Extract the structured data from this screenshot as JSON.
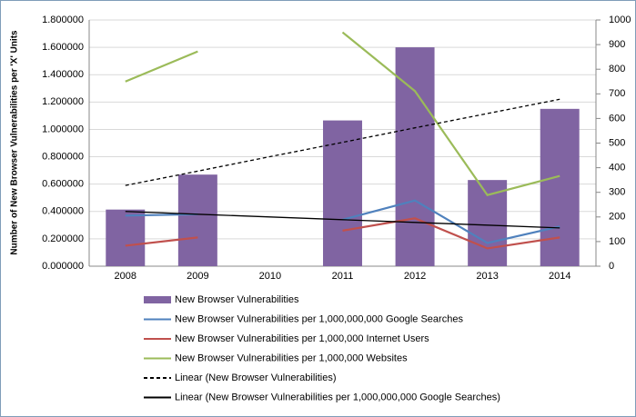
{
  "chart_data": {
    "type": "bar",
    "y_axis_label": "Number of New Browser Vulnerabilities per 'X' Units",
    "categories": [
      "2008",
      "2009",
      "2010",
      "2011",
      "2012",
      "2013",
      "2014"
    ],
    "ylim": [
      0,
      1.8
    ],
    "yticks": [
      {
        "value": 0,
        "label": "0.000000"
      },
      {
        "value": 0.2,
        "label": "0.200000"
      },
      {
        "value": 0.4,
        "label": "0.400000"
      },
      {
        "value": 0.6,
        "label": "0.600000"
      },
      {
        "value": 0.8,
        "label": "0.800000"
      },
      {
        "value": 1.0,
        "label": "1.000000"
      },
      {
        "value": 1.2,
        "label": "1.200000"
      },
      {
        "value": 1.4,
        "label": "1.400000"
      },
      {
        "value": 1.6,
        "label": "1.600000"
      },
      {
        "value": 1.8,
        "label": "1.800000"
      }
    ],
    "y2lim": [
      0,
      1000
    ],
    "y2ticks": [
      0,
      100,
      200,
      300,
      400,
      500,
      600,
      700,
      800,
      900,
      1000
    ],
    "grid": true,
    "series": [
      {
        "name": "New Browser Vulnerabilities",
        "type": "bar",
        "axis": "y2",
        "color": "#8064a2",
        "values": [
          230,
          372,
          null,
          592,
          889,
          350,
          639
        ]
      },
      {
        "name": "New Browser Vulnerabilities per 1,000,000,000 Google Searches",
        "type": "line",
        "color": "#4f81bd",
        "values": [
          0.37,
          0.38,
          null,
          0.34,
          0.48,
          0.17,
          0.29
        ]
      },
      {
        "name": "New Browser Vulnerabilities per 1,000,000 Internet Users",
        "type": "line",
        "color": "#c0504d",
        "values": [
          0.15,
          0.21,
          null,
          0.26,
          0.35,
          0.13,
          0.21
        ]
      },
      {
        "name": "New Browser Vulnerabilities per 1,000,000 Websites",
        "type": "line",
        "color": "#9bbb59",
        "values": [
          1.35,
          1.57,
          null,
          1.71,
          1.28,
          0.52,
          0.66
        ]
      },
      {
        "name": "Linear (New Browser Vulnerabilities)",
        "type": "line",
        "axis": "y2",
        "dash": true,
        "color": "#000000",
        "values": [
          328,
          386,
          445,
          503,
          562,
          620,
          678
        ]
      },
      {
        "name": "Linear (New Browser Vulnerabilities per 1,000,000,000 Google Searches)",
        "type": "line",
        "color": "#000000",
        "values": [
          0.4,
          0.38,
          0.36,
          0.34,
          0.32,
          0.3,
          0.28
        ]
      }
    ]
  }
}
